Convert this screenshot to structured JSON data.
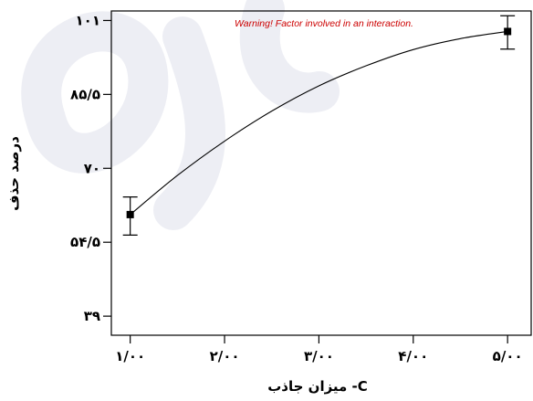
{
  "chart_data": {
    "type": "line",
    "title": "",
    "annotation": "Warning! Factor involved in an interaction.",
    "xlabel": "C- میزان جاذب",
    "ylabel": "درصد حذف",
    "x_ticks": [
      1,
      2,
      3,
      4,
      5
    ],
    "x_tick_labels": [
      "۱/۰۰",
      "۲/۰۰",
      "۳/۰۰",
      "۴/۰۰",
      "۵/۰۰"
    ],
    "y_ticks": [
      39,
      54.5,
      70,
      85.5,
      101
    ],
    "y_tick_labels": [
      "۳۹",
      "۵۴/۵",
      "۷۰",
      "۸۵/۵",
      "۱۰۱"
    ],
    "xlim": [
      0.8,
      5.25
    ],
    "ylim": [
      35,
      103
    ],
    "grid": false,
    "series": [
      {
        "type": "fitted-curve",
        "x": [
          1,
          1.5,
          2,
          2.5,
          3,
          3.5,
          4,
          4.5,
          5
        ],
        "y": [
          60.3,
          68.5,
          75.7,
          82.0,
          87.3,
          91.5,
          94.9,
          97.2,
          98.7
        ]
      },
      {
        "type": "points-with-error-bars",
        "x": [
          1,
          5
        ],
        "y": [
          60.3,
          98.7
        ],
        "error_low": [
          56.0,
          95.0
        ],
        "error_high": [
          64.0,
          102.0
        ]
      }
    ],
    "colors": {
      "axis": "#000000",
      "curve": "#000000",
      "annotation": "#cc0000",
      "watermark": "#1a2b6e"
    }
  }
}
